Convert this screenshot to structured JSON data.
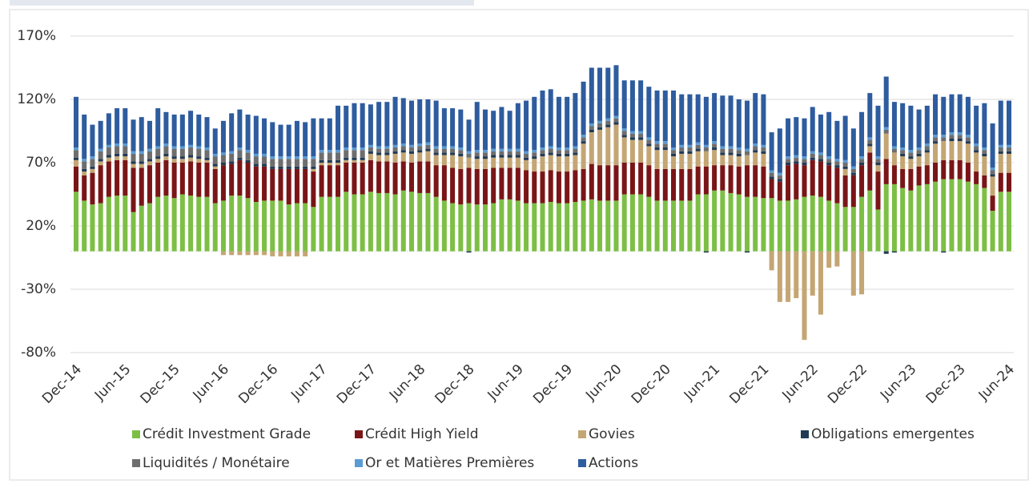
{
  "chart_data": {
    "type": "bar",
    "stacked": true,
    "categories": [
      "Dec-14",
      null,
      null,
      null,
      null,
      null,
      "Jun-15",
      null,
      null,
      null,
      null,
      null,
      "Dec-15",
      null,
      null,
      null,
      null,
      null,
      "Jun-16",
      null,
      null,
      null,
      null,
      null,
      "Dec-16",
      null,
      null,
      null,
      null,
      null,
      "Jun-17",
      null,
      null,
      null,
      null,
      null,
      "Dec-17",
      null,
      null,
      null,
      null,
      null,
      "Jun-18",
      null,
      null,
      null,
      null,
      null,
      "Dec-18",
      null,
      null,
      null,
      null,
      null,
      "Jun-19",
      null,
      null,
      null,
      null,
      null,
      "Dec-19",
      null,
      null,
      null,
      null,
      null,
      "Jun-20",
      null,
      null,
      null,
      null,
      null,
      "Dec-20",
      null,
      null,
      null,
      null,
      null,
      "Jun-21",
      null,
      null,
      null,
      null,
      null,
      "Dec-21",
      null,
      null,
      null,
      null,
      null,
      "Jun-22",
      null,
      null,
      null,
      null,
      null,
      "Dec-22",
      null,
      null,
      null,
      null,
      null,
      "Jun-23",
      null,
      null,
      null,
      null,
      null,
      "Dec-23",
      null,
      null,
      null,
      null,
      null,
      "Jun-24"
    ],
    "series": [
      {
        "name": "Crédit Investment Grade",
        "color": "#7dbf45",
        "values": [
          47,
          40,
          37,
          38,
          43,
          44,
          44,
          31,
          36,
          38,
          43,
          44,
          42,
          45,
          44,
          43,
          43,
          38,
          40,
          44,
          44,
          42,
          39,
          40,
          40,
          40,
          37,
          38,
          38,
          35,
          43,
          43,
          43,
          47,
          45,
          45,
          47,
          46,
          46,
          45,
          48,
          47,
          46,
          46,
          43,
          40,
          38,
          37,
          38,
          37,
          37,
          38,
          41,
          41,
          40,
          38,
          38,
          38,
          39,
          38,
          38,
          39,
          40,
          41,
          40,
          40,
          40,
          45,
          45,
          45,
          43,
          40,
          40,
          40,
          40,
          40,
          45,
          45,
          48,
          48,
          46,
          45,
          43,
          43,
          42,
          42,
          40,
          40,
          41,
          43,
          44,
          43,
          40,
          38,
          35,
          35,
          43,
          48,
          33,
          53,
          53,
          50,
          48,
          52,
          53,
          55,
          57,
          57,
          57,
          55,
          53,
          50,
          32,
          47,
          47
        ]
      },
      {
        "name": "Crédit High Yield",
        "color": "#7a1517",
        "values": [
          20,
          20,
          25,
          30,
          28,
          28,
          28,
          35,
          30,
          30,
          27,
          28,
          28,
          25,
          27,
          27,
          27,
          27,
          28,
          25,
          28,
          28,
          28,
          27,
          25,
          25,
          28,
          27,
          27,
          28,
          25,
          25,
          25,
          23,
          25,
          25,
          25,
          25,
          25,
          25,
          23,
          23,
          25,
          25,
          25,
          28,
          28,
          28,
          28,
          28,
          28,
          28,
          25,
          25,
          26,
          26,
          25,
          25,
          25,
          25,
          25,
          25,
          25,
          28,
          28,
          28,
          28,
          25,
          25,
          25,
          25,
          25,
          25,
          25,
          25,
          25,
          22,
          22,
          20,
          20,
          22,
          22,
          25,
          25,
          25,
          15,
          15,
          28,
          28,
          25,
          28,
          28,
          28,
          28,
          25,
          25,
          25,
          30,
          30,
          20,
          15,
          15,
          17,
          15,
          15,
          15,
          15,
          15,
          15,
          15,
          10,
          10,
          12,
          15,
          15
        ]
      },
      {
        "name": "Govies",
        "color": "#c4a674",
        "values": [
          5,
          3,
          3,
          3,
          3,
          3,
          3,
          3,
          3,
          3,
          3,
          3,
          3,
          3,
          3,
          3,
          2,
          2,
          -3,
          -3,
          -3,
          -3,
          -3,
          -3,
          -4,
          -4,
          -4,
          -4,
          -4,
          2,
          2,
          2,
          2,
          2,
          2,
          2,
          5,
          5,
          5,
          7,
          7,
          7,
          7,
          8,
          8,
          8,
          10,
          10,
          8,
          8,
          8,
          8,
          8,
          8,
          8,
          8,
          10,
          12,
          12,
          12,
          12,
          12,
          20,
          25,
          28,
          30,
          32,
          20,
          18,
          18,
          15,
          15,
          15,
          10,
          12,
          12,
          12,
          12,
          12,
          8,
          8,
          8,
          8,
          10,
          10,
          -15,
          -40,
          -40,
          -37,
          -70,
          -35,
          -50,
          -13,
          -12,
          5,
          -35,
          -34,
          5,
          5,
          20,
          10,
          10,
          8,
          8,
          10,
          15,
          15,
          15,
          15,
          15,
          15,
          15,
          15,
          15,
          15
        ]
      },
      {
        "name": "Obligations emergentes",
        "color": "#223a55",
        "values": [
          2,
          2,
          2,
          2,
          2,
          2,
          2,
          2,
          2,
          2,
          2,
          2,
          2,
          2,
          2,
          2,
          2,
          2,
          2,
          2,
          2,
          2,
          2,
          2,
          2,
          2,
          2,
          2,
          2,
          2,
          2,
          2,
          2,
          2,
          2,
          2,
          2,
          2,
          2,
          2,
          2,
          2,
          2,
          2,
          2,
          2,
          2,
          2,
          -1,
          2,
          2,
          2,
          2,
          2,
          2,
          2,
          2,
          2,
          2,
          2,
          2,
          2,
          2,
          2,
          2,
          2,
          2,
          2,
          2,
          2,
          2,
          2,
          2,
          2,
          2,
          2,
          2,
          -1,
          2,
          2,
          2,
          2,
          -1,
          2,
          2,
          2,
          2,
          2,
          2,
          2,
          2,
          2,
          2,
          2,
          2,
          2,
          2,
          2,
          2,
          -2,
          -1,
          2,
          2,
          2,
          2,
          2,
          -1,
          2,
          2,
          2,
          2,
          2,
          2,
          2,
          2
        ]
      },
      {
        "name": "Liquidités / Monétaire",
        "color": "#6e6e6e",
        "values": [
          6,
          6,
          6,
          6,
          6,
          6,
          6,
          6,
          6,
          6,
          6,
          6,
          6,
          6,
          6,
          6,
          6,
          6,
          6,
          6,
          6,
          6,
          6,
          6,
          6,
          6,
          6,
          6,
          6,
          6,
          6,
          6,
          6,
          6,
          6,
          6,
          3,
          3,
          3,
          3,
          3,
          3,
          3,
          3,
          3,
          3,
          3,
          3,
          3,
          3,
          3,
          3,
          3,
          3,
          3,
          3,
          3,
          3,
          3,
          3,
          3,
          3,
          3,
          3,
          3,
          3,
          3,
          3,
          3,
          3,
          3,
          3,
          3,
          3,
          3,
          3,
          3,
          3,
          3,
          3,
          3,
          3,
          3,
          3,
          3,
          3,
          3,
          3,
          3,
          3,
          3,
          3,
          3,
          3,
          3,
          3,
          3,
          3,
          3,
          3,
          3,
          3,
          3,
          3,
          3,
          3,
          3,
          3,
          3,
          3,
          3,
          3,
          3,
          3,
          3
        ]
      },
      {
        "name": "Or et Matières Premières",
        "color": "#5b9bd5",
        "values": [
          2,
          2,
          2,
          2,
          2,
          2,
          2,
          2,
          2,
          2,
          2,
          2,
          2,
          2,
          2,
          2,
          2,
          2,
          2,
          2,
          2,
          2,
          2,
          2,
          2,
          2,
          2,
          2,
          2,
          2,
          2,
          2,
          2,
          2,
          2,
          2,
          2,
          2,
          2,
          2,
          2,
          2,
          2,
          2,
          2,
          2,
          2,
          2,
          2,
          2,
          2,
          2,
          2,
          2,
          2,
          2,
          2,
          2,
          2,
          2,
          2,
          2,
          2,
          2,
          2,
          2,
          2,
          2,
          2,
          2,
          2,
          2,
          2,
          2,
          2,
          2,
          2,
          2,
          2,
          2,
          2,
          2,
          2,
          2,
          2,
          2,
          2,
          2,
          2,
          2,
          2,
          2,
          2,
          2,
          2,
          2,
          2,
          2,
          2,
          2,
          2,
          2,
          2,
          2,
          2,
          2,
          2,
          2,
          2,
          2,
          2,
          2,
          2,
          2,
          2
        ]
      },
      {
        "name": "Actions",
        "color": "#2e5c9e",
        "values": [
          40,
          35,
          25,
          22,
          25,
          28,
          28,
          25,
          27,
          22,
          30,
          25,
          25,
          25,
          27,
          25,
          24,
          20,
          25,
          30,
          30,
          28,
          30,
          28,
          27,
          25,
          25,
          28,
          27,
          30,
          25,
          25,
          35,
          33,
          35,
          35,
          32,
          35,
          35,
          38,
          36,
          35,
          35,
          34,
          36,
          30,
          30,
          30,
          25,
          38,
          32,
          30,
          33,
          30,
          36,
          40,
          42,
          45,
          45,
          40,
          40,
          42,
          42,
          44,
          42,
          40,
          40,
          38,
          40,
          40,
          40,
          40,
          40,
          45,
          40,
          40,
          38,
          38,
          38,
          40,
          40,
          38,
          38,
          40,
          40,
          30,
          35,
          30,
          30,
          30,
          35,
          30,
          35,
          30,
          35,
          30,
          35,
          35,
          40,
          40,
          35,
          35,
          35,
          30,
          30,
          32,
          30,
          30,
          30,
          30,
          30,
          35,
          35,
          35,
          35
        ]
      }
    ],
    "ylim": [
      -80,
      170
    ],
    "yticks": [
      {
        "value": -80,
        "label": "-80%"
      },
      {
        "value": -30,
        "label": "-30%"
      },
      {
        "value": 20,
        "label": "20%"
      },
      {
        "value": 70,
        "label": "70%"
      },
      {
        "value": 120,
        "label": "120%"
      },
      {
        "value": 170,
        "label": "170%"
      }
    ],
    "grid": true,
    "legend": "bottom"
  }
}
